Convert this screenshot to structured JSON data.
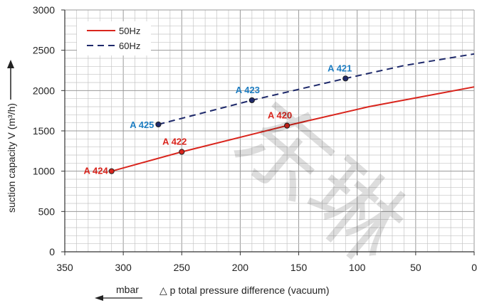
{
  "chart_data": {
    "type": "line",
    "x_axis": {
      "min": 0,
      "max": 350,
      "reversed": true,
      "ticks": [
        "350",
        "300",
        "250",
        "200",
        "150",
        "100",
        "50",
        "0"
      ],
      "unit": "mbar",
      "label": "△ p  total pressure difference (vacuum)"
    },
    "y_axis": {
      "min": 0,
      "max": 3000,
      "ticks": [
        "0",
        "500",
        "1000",
        "1500",
        "2000",
        "2500",
        "3000"
      ],
      "label": "suction capacity V (m³/h)"
    },
    "grid": true,
    "legend_position": "top-left",
    "series": [
      {
        "name": "50Hz",
        "color": "#d9251d",
        "dash": "solid",
        "points": [
          [
            310,
            1000
          ],
          [
            250,
            1240
          ],
          [
            160,
            1565
          ],
          [
            90,
            1800
          ],
          [
            0,
            2045
          ]
        ],
        "markers": [
          {
            "label": "A 424",
            "x": 310,
            "y": 1000
          },
          {
            "label": "A 422",
            "x": 250,
            "y": 1240
          },
          {
            "label": "A 420",
            "x": 160,
            "y": 1565
          }
        ]
      },
      {
        "name": "60Hz",
        "color": "#1f2a6b",
        "dash": "dashed",
        "points": [
          [
            270,
            1580
          ],
          [
            190,
            1880
          ],
          [
            110,
            2150
          ],
          [
            60,
            2310
          ],
          [
            0,
            2455
          ]
        ],
        "markers": [
          {
            "label": "A 425",
            "x": 270,
            "y": 1580
          },
          {
            "label": "A 423",
            "x": 190,
            "y": 1880
          },
          {
            "label": "A 421",
            "x": 110,
            "y": 2150
          }
        ]
      }
    ],
    "watermark": "东琳"
  }
}
